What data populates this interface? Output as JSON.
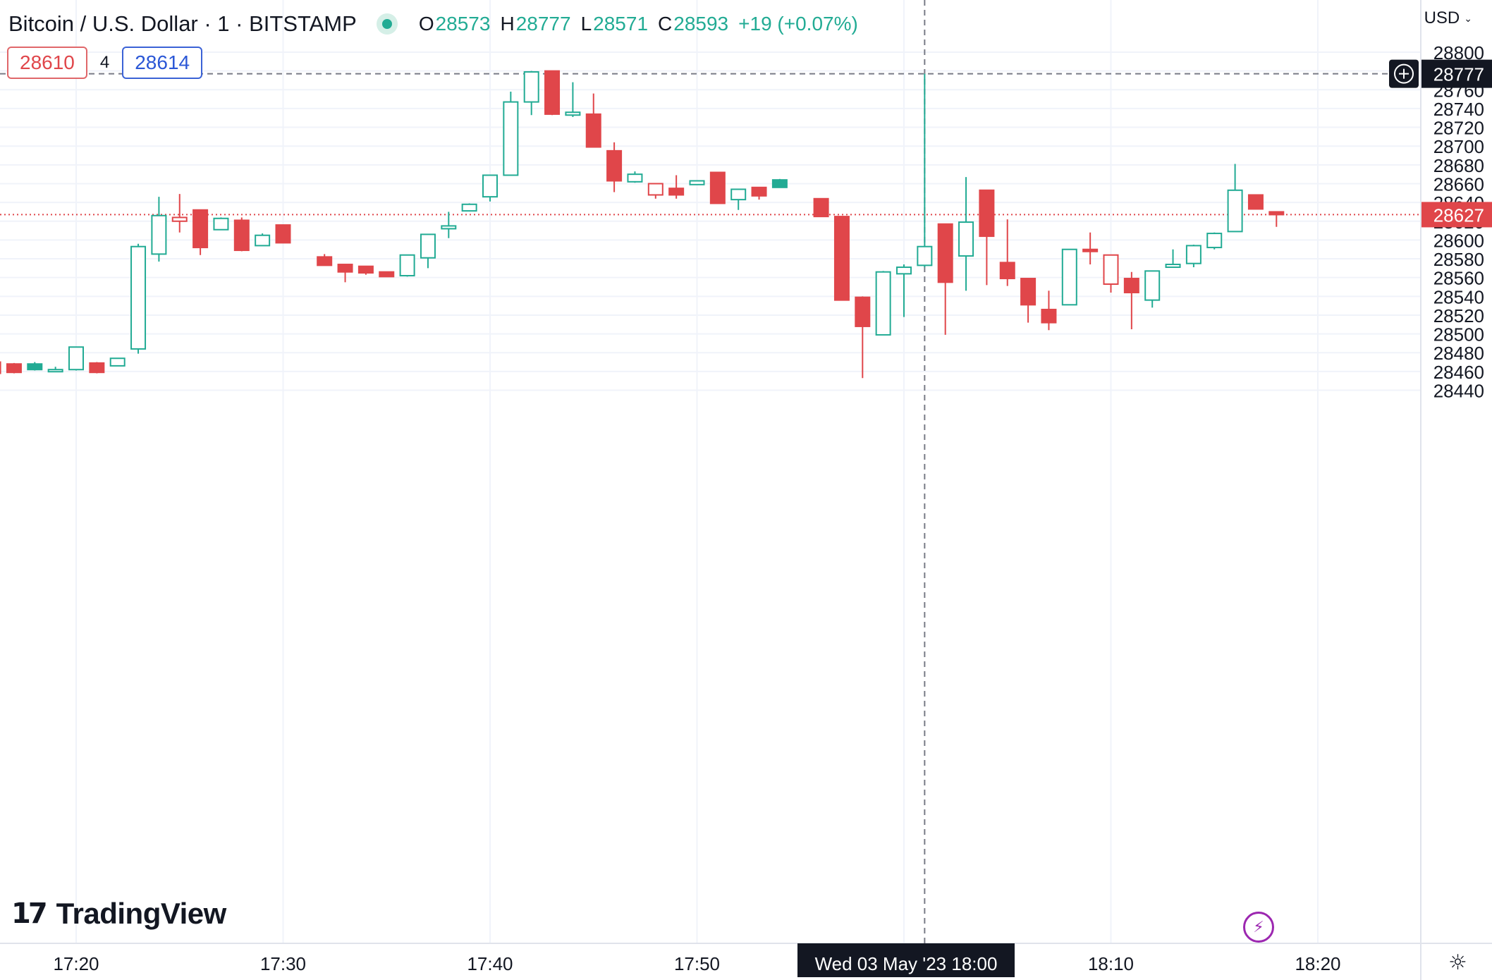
{
  "header": {
    "title": "Bitcoin / U.S. Dollar · 1 · BITSTAMP",
    "ohlc": {
      "o_label": "O",
      "o": "28573",
      "h_label": "H",
      "h": "28777",
      "l_label": "L",
      "l": "28571",
      "c_label": "C",
      "c": "28593",
      "change": "+19 (+0.07%)"
    },
    "bid": "28610",
    "spread": "4",
    "ask": "28614",
    "currency": "USD",
    "market_status_icon": "market-open-dot"
  },
  "branding": {
    "logo_text": "TradingView",
    "logo_mark": "17"
  },
  "colors": {
    "up": "#22ab94",
    "down": "#e0464a",
    "grid": "#f0f3fa",
    "text": "#131722"
  },
  "icons": {
    "add_alert": "plus-circle-icon",
    "lightning": "lightning-icon",
    "settings": "gear-icon"
  },
  "chart_data": {
    "type": "candlestick",
    "title": "Bitcoin / U.S. Dollar · 1 · BITSTAMP",
    "interval_minutes": 1,
    "grid": true,
    "y_ticks": [
      28800,
      28760,
      28740,
      28720,
      28700,
      28680,
      28660,
      28640,
      28620,
      28600,
      28580,
      28560,
      28540,
      28520,
      28500,
      28480,
      28460,
      28440
    ],
    "ylim": [
      28420,
      28820
    ],
    "x_ticks": [
      "17:20",
      "17:30",
      "17:40",
      "17:50",
      "18:10",
      "18:20"
    ],
    "crosshair": {
      "time_label": "Wed 03 May '23",
      "time_value": "18:00",
      "price": "28777"
    },
    "last_price": "28627",
    "candles": [
      {
        "time": "17:16",
        "o": 28470,
        "h": 28472,
        "l": 28458,
        "c": 28458
      },
      {
        "time": "17:17",
        "o": 28468,
        "h": 28469,
        "l": 28458,
        "c": 28459,
        "fill": true
      },
      {
        "time": "17:18",
        "o": 28462,
        "h": 28470,
        "l": 28461,
        "c": 28468,
        "fill": true
      },
      {
        "time": "17:19",
        "o": 28462,
        "h": 28465,
        "l": 28461,
        "c": 28462
      },
      {
        "time": "17:20",
        "o": 28462,
        "h": 28486,
        "l": 28461,
        "c": 28486
      },
      {
        "time": "17:21",
        "o": 28469,
        "h": 28470,
        "l": 28458,
        "c": 28459
      },
      {
        "time": "17:22",
        "o": 28466,
        "h": 28474,
        "l": 28466,
        "c": 28474
      },
      {
        "time": "17:23",
        "o": 28484,
        "h": 28596,
        "l": 28479,
        "c": 28593
      },
      {
        "time": "17:24",
        "o": 28585,
        "h": 28646,
        "l": 28577,
        "c": 28626
      },
      {
        "time": "17:25",
        "o": 28624,
        "h": 28649,
        "l": 28608,
        "c": 28620,
        "hollow_down": true
      },
      {
        "time": "17:26",
        "o": 28632,
        "h": 28632,
        "l": 28584,
        "c": 28592
      },
      {
        "time": "17:27",
        "o": 28611,
        "h": 28624,
        "l": 28611,
        "c": 28623
      },
      {
        "time": "17:28",
        "o": 28621,
        "h": 28624,
        "l": 28588,
        "c": 28589
      },
      {
        "time": "17:29",
        "o": 28594,
        "h": 28607,
        "l": 28594,
        "c": 28605
      },
      {
        "time": "17:30",
        "o": 28616,
        "h": 28616,
        "l": 28597,
        "c": 28597
      },
      {
        "time": "17:32",
        "o": 28582,
        "h": 28585,
        "l": 28573,
        "c": 28573
      },
      {
        "time": "17:33",
        "o": 28574,
        "h": 28574,
        "l": 28555,
        "c": 28566
      },
      {
        "time": "17:34",
        "o": 28572,
        "h": 28572,
        "l": 28563,
        "c": 28565
      },
      {
        "time": "17:35",
        "o": 28566,
        "h": 28566,
        "l": 28561,
        "c": 28561
      },
      {
        "time": "17:36",
        "o": 28562,
        "h": 28584,
        "l": 28561,
        "c": 28584
      },
      {
        "time": "17:37",
        "o": 28581,
        "h": 28606,
        "l": 28570,
        "c": 28606
      },
      {
        "time": "17:38",
        "o": 28612,
        "h": 28630,
        "l": 28602,
        "c": 28615
      },
      {
        "time": "17:39",
        "o": 28631,
        "h": 28639,
        "l": 28631,
        "c": 28638
      },
      {
        "time": "17:40",
        "o": 28646,
        "h": 28669,
        "l": 28641,
        "c": 28669
      },
      {
        "time": "17:41",
        "o": 28669,
        "h": 28758,
        "l": 28669,
        "c": 28747
      },
      {
        "time": "17:42",
        "o": 28747,
        "h": 28780,
        "l": 28733,
        "c": 28779
      },
      {
        "time": "17:43",
        "o": 28780,
        "h": 28780,
        "l": 28733,
        "c": 28734
      },
      {
        "time": "17:44",
        "o": 28733,
        "h": 28768,
        "l": 28731,
        "c": 28736
      },
      {
        "time": "17:45",
        "o": 28734,
        "h": 28756,
        "l": 28699,
        "c": 28699
      },
      {
        "time": "17:46",
        "o": 28695,
        "h": 28704,
        "l": 28651,
        "c": 28663
      },
      {
        "time": "17:47",
        "o": 28662,
        "h": 28673,
        "l": 28661,
        "c": 28670
      },
      {
        "time": "17:48",
        "o": 28660,
        "h": 28660,
        "l": 28644,
        "c": 28648,
        "hollow_down": true
      },
      {
        "time": "17:49",
        "o": 28655,
        "h": 28669,
        "l": 28644,
        "c": 28648
      },
      {
        "time": "17:50",
        "o": 28659,
        "h": 28663,
        "l": 28659,
        "c": 28663
      },
      {
        "time": "17:51",
        "o": 28672,
        "h": 28672,
        "l": 28639,
        "c": 28639
      },
      {
        "time": "17:52",
        "o": 28643,
        "h": 28654,
        "l": 28632,
        "c": 28654
      },
      {
        "time": "17:53",
        "o": 28656,
        "h": 28656,
        "l": 28643,
        "c": 28647
      },
      {
        "time": "17:54",
        "o": 28656,
        "h": 28665,
        "l": 28656,
        "c": 28664,
        "fill": true
      },
      {
        "time": "17:56",
        "o": 28644,
        "h": 28644,
        "l": 28625,
        "c": 28625
      },
      {
        "time": "17:57",
        "o": 28625,
        "h": 28625,
        "l": 28536,
        "c": 28536
      },
      {
        "time": "17:58",
        "o": 28539,
        "h": 28540,
        "l": 28453,
        "c": 28508
      },
      {
        "time": "17:59",
        "o": 28499,
        "h": 28567,
        "l": 28499,
        "c": 28566
      },
      {
        "time": "18:00",
        "o": 28564,
        "h": 28574,
        "l": 28518,
        "c": 28571
      },
      {
        "time": "18:01",
        "o": 28573,
        "h": 28777,
        "l": 28571,
        "c": 28593
      },
      {
        "time": "18:02",
        "o": 28617,
        "h": 28617,
        "l": 28499,
        "c": 28555
      },
      {
        "time": "18:03",
        "o": 28583,
        "h": 28667,
        "l": 28546,
        "c": 28619
      },
      {
        "time": "18:04",
        "o": 28653,
        "h": 28653,
        "l": 28552,
        "c": 28604
      },
      {
        "time": "18:05",
        "o": 28576,
        "h": 28622,
        "l": 28551,
        "c": 28559
      },
      {
        "time": "18:06",
        "o": 28559,
        "h": 28559,
        "l": 28512,
        "c": 28531
      },
      {
        "time": "18:07",
        "o": 28526,
        "h": 28546,
        "l": 28504,
        "c": 28512
      },
      {
        "time": "18:08",
        "o": 28531,
        "h": 28590,
        "l": 28531,
        "c": 28590
      },
      {
        "time": "18:09",
        "o": 28590,
        "h": 28608,
        "l": 28574,
        "c": 28588
      },
      {
        "time": "18:10",
        "o": 28584,
        "h": 28584,
        "l": 28544,
        "c": 28553,
        "hollow_down": true
      },
      {
        "time": "18:11",
        "o": 28559,
        "h": 28566,
        "l": 28505,
        "c": 28544
      },
      {
        "time": "18:12",
        "o": 28536,
        "h": 28567,
        "l": 28528,
        "c": 28567
      },
      {
        "time": "18:13",
        "o": 28571,
        "h": 28590,
        "l": 28571,
        "c": 28574
      },
      {
        "time": "18:14",
        "o": 28575,
        "h": 28595,
        "l": 28571,
        "c": 28594
      },
      {
        "time": "18:15",
        "o": 28592,
        "h": 28608,
        "l": 28590,
        "c": 28607
      },
      {
        "time": "18:16",
        "o": 28609,
        "h": 28681,
        "l": 28609,
        "c": 28653
      },
      {
        "time": "18:17",
        "o": 28648,
        "h": 28648,
        "l": 28633,
        "c": 28633
      },
      {
        "time": "18:18",
        "o": 28630,
        "h": 28630,
        "l": 28614,
        "c": 28627
      }
    ]
  }
}
